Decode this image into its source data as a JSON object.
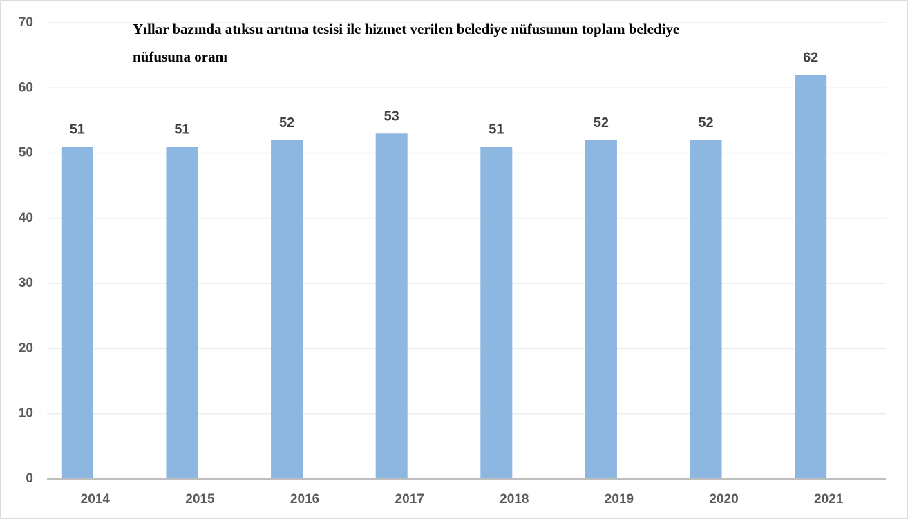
{
  "chart_data": {
    "type": "bar",
    "title": "Yıllar bazında atıksu arıtma tesisi ile hizmet verilen belediye nüfusunun toplam belediye nüfusuna oranı",
    "categories": [
      "2014",
      "2015",
      "2016",
      "2017",
      "2018",
      "2019",
      "2020",
      "2021"
    ],
    "values": [
      51,
      51,
      52,
      53,
      51,
      52,
      52,
      62
    ],
    "color": "#8db6e0",
    "ylim": [
      0,
      70
    ],
    "yticks": [
      0,
      10,
      20,
      30,
      40,
      50,
      60,
      70
    ],
    "grid": true
  }
}
